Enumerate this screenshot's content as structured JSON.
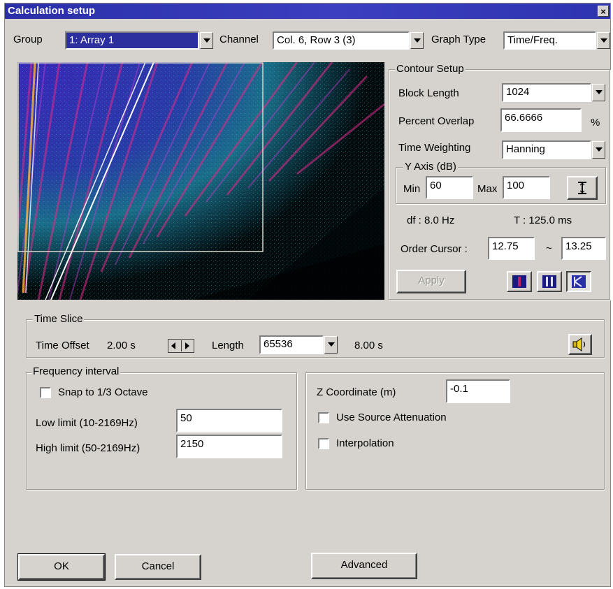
{
  "window": {
    "title": "Calculation setup",
    "close_glyph": "×"
  },
  "top": {
    "group_label": "Group",
    "group_value": "1: Array 1",
    "channel_label": "Channel",
    "channel_value": "Col. 6, Row 3 (3)",
    "graph_type_label": "Graph Type",
    "graph_type_value": "Time/Freq."
  },
  "contour": {
    "legend": "Contour Setup",
    "block_length_label": "Block Length",
    "block_length_value": "1024",
    "overlap_label": "Percent Overlap",
    "overlap_value": "66.6666",
    "overlap_unit": "%",
    "weighting_label": "Time Weighting",
    "weighting_value": "Hanning",
    "yaxis_legend": "Y Axis (dB)",
    "min_label": "Min",
    "min_value": "60",
    "max_label": "Max",
    "max_value": "100",
    "df_text": "df :  8.0 Hz",
    "t_text": "T :  125.0 ms",
    "order_cursor_label": "Order Cursor :",
    "order_from": "12.75",
    "order_sep": "~",
    "order_to": "13.25",
    "apply_label": "Apply"
  },
  "time_slice": {
    "legend": "Time Slice",
    "offset_label": "Time Offset",
    "offset_value": "2.00 s",
    "length_label": "Length",
    "length_value": "65536",
    "duration_text": "8.00 s"
  },
  "frequency": {
    "legend": "Frequency interval",
    "snap_label": "Snap to 1/3 Octave",
    "low_label": "Low limit (10-2169Hz)",
    "low_value": "50",
    "high_label": "High limit (50-2169Hz)",
    "high_value": "2150"
  },
  "zpanel": {
    "z_label": "Z Coordinate (m)",
    "z_value": "-0.1",
    "source_atten_label": "Use Source Attenuation",
    "interp_label": "Interpolation"
  },
  "buttons": {
    "ok": "OK",
    "cancel": "Cancel",
    "advanced": "Advanced"
  },
  "colors": {
    "title_bar": "#2a2fa8",
    "face": "#d6d3ce",
    "selection": "#2c2f9e"
  },
  "icons": [
    "speaker-icon",
    "y-range-icon",
    "view-mode-1-icon",
    "view-mode-2-icon",
    "view-mode-3-icon"
  ]
}
